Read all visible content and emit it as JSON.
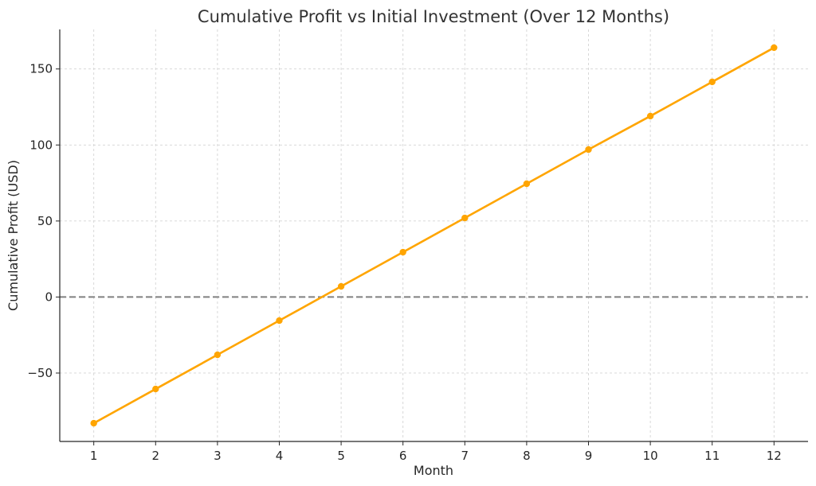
{
  "chart_data": {
    "type": "line",
    "title": "Cumulative Profit vs Initial Investment (Over 12 Months)",
    "xlabel": "Month",
    "ylabel": "Cumulative Profit (USD)",
    "x": [
      1,
      2,
      3,
      4,
      5,
      6,
      7,
      8,
      9,
      10,
      11,
      12
    ],
    "x_ticks": [
      1,
      2,
      3,
      4,
      5,
      6,
      7,
      8,
      9,
      10,
      11,
      12
    ],
    "y_ticks": [
      -50,
      0,
      50,
      100,
      150
    ],
    "y_tick_labels": [
      "−50",
      "0",
      "50",
      "100",
      "150"
    ],
    "xlim": [
      0.45,
      12.55
    ],
    "ylim": [
      -95,
      176
    ],
    "grid": true,
    "series": [
      {
        "values": [
          -83,
          -60.5,
          -38,
          -15.5,
          7,
          29.5,
          52,
          74.5,
          97,
          119,
          141.5,
          164
        ],
        "color": "#FFA500",
        "marker": "circle"
      }
    ],
    "reference_lines": [
      {
        "axis": "y",
        "value": 0,
        "style": "dashed",
        "color": "#808080"
      }
    ]
  }
}
